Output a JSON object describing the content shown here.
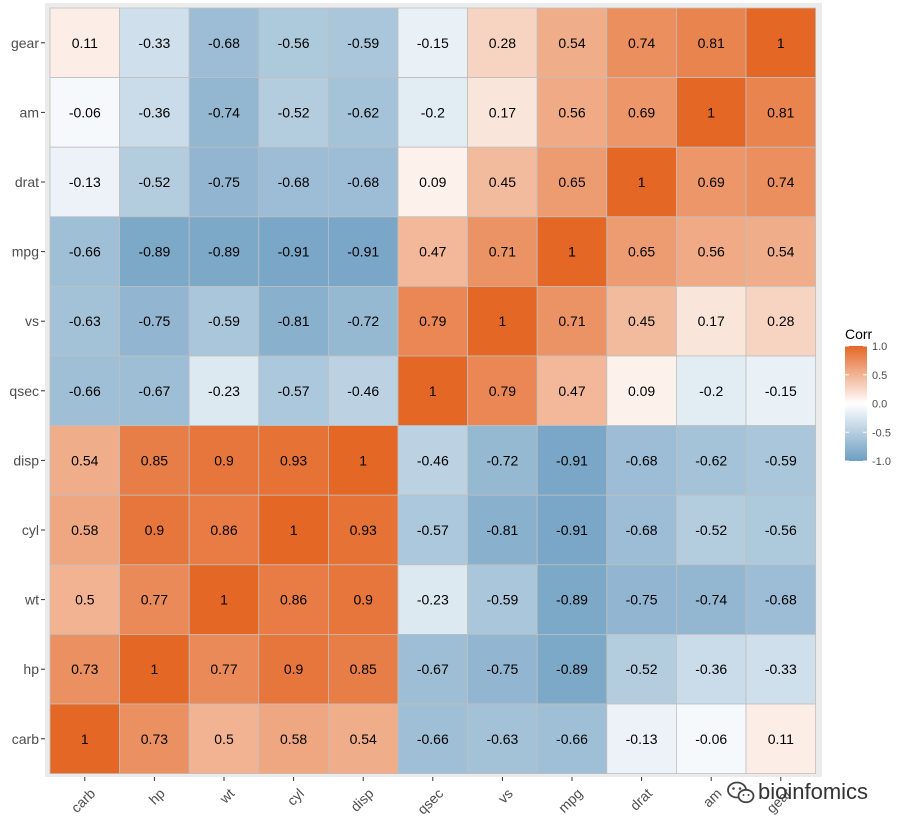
{
  "chart_data": {
    "type": "heatmap",
    "x_categories": [
      "carb",
      "hp",
      "wt",
      "cyl",
      "disp",
      "qsec",
      "vs",
      "mpg",
      "drat",
      "am",
      "gear"
    ],
    "y_categories": [
      "gear",
      "am",
      "drat",
      "mpg",
      "vs",
      "qsec",
      "disp",
      "cyl",
      "wt",
      "hp",
      "carb"
    ],
    "values": [
      [
        0.11,
        -0.33,
        -0.68,
        -0.56,
        -0.59,
        -0.15,
        0.28,
        0.54,
        0.74,
        0.81,
        1
      ],
      [
        -0.06,
        -0.36,
        -0.74,
        -0.52,
        -0.62,
        -0.2,
        0.17,
        0.56,
        0.69,
        1,
        0.81
      ],
      [
        -0.13,
        -0.52,
        -0.75,
        -0.68,
        -0.68,
        0.09,
        0.45,
        0.65,
        1,
        0.69,
        0.74
      ],
      [
        -0.66,
        -0.89,
        -0.89,
        -0.91,
        -0.91,
        0.47,
        0.71,
        1,
        0.65,
        0.56,
        0.54
      ],
      [
        -0.63,
        -0.75,
        -0.59,
        -0.81,
        -0.72,
        0.79,
        1,
        0.71,
        0.45,
        0.17,
        0.28
      ],
      [
        -0.66,
        -0.67,
        -0.23,
        -0.57,
        -0.46,
        1,
        0.79,
        0.47,
        0.09,
        -0.2,
        -0.15
      ],
      [
        0.54,
        0.85,
        0.9,
        0.93,
        1,
        -0.46,
        -0.72,
        -0.91,
        -0.68,
        -0.62,
        -0.59
      ],
      [
        0.58,
        0.9,
        0.86,
        1,
        0.93,
        -0.57,
        -0.81,
        -0.91,
        -0.68,
        -0.52,
        -0.56
      ],
      [
        0.5,
        0.77,
        1,
        0.86,
        0.9,
        -0.23,
        -0.59,
        -0.89,
        -0.75,
        -0.74,
        -0.68
      ],
      [
        0.73,
        1,
        0.77,
        0.9,
        0.85,
        -0.67,
        -0.75,
        -0.89,
        -0.52,
        -0.36,
        -0.33
      ],
      [
        1,
        0.73,
        0.5,
        0.58,
        0.54,
        -0.66,
        -0.63,
        -0.66,
        -0.13,
        -0.06,
        0.11
      ]
    ],
    "legend": {
      "title": "Corr",
      "ticks": [
        1.0,
        0.5,
        0.0,
        -0.5,
        -1.0
      ],
      "tick_labels": [
        "1.0",
        "0.5",
        "0.0",
        "-0.5",
        "-1.0"
      ],
      "placement": "right"
    },
    "colors": {
      "high": "#E46726",
      "mid": "#FFFFFF",
      "low": "#6D9EC1"
    },
    "value_range": [
      -1,
      1
    ],
    "grid": true
  },
  "watermark": {
    "text": "bioinfomics",
    "icon": "wechat-icon"
  }
}
